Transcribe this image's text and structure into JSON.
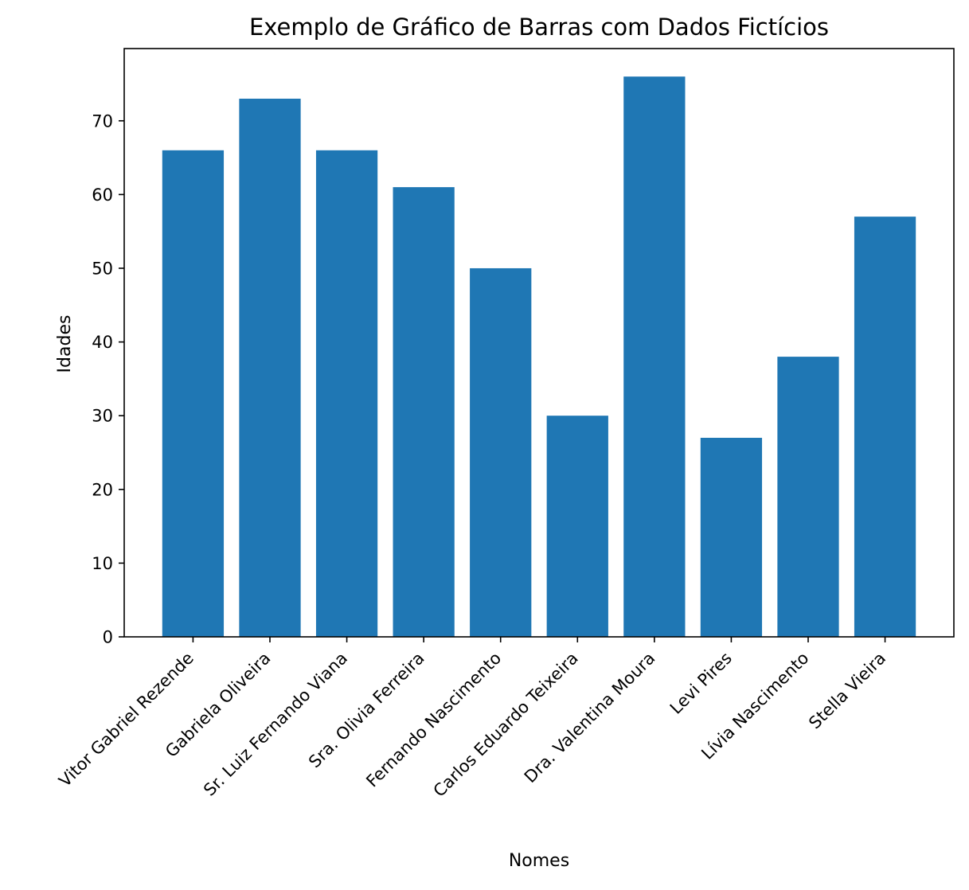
{
  "chart_data": {
    "type": "bar",
    "title": "Exemplo de Gráfico de Barras com Dados Fictícios",
    "xlabel": "Nomes",
    "ylabel": "Idades",
    "categories": [
      "Vitor Gabriel Rezende",
      "Gabriela Oliveira",
      "Sr. Luiz Fernando Viana",
      "Sra. Olivia Ferreira",
      "Fernando Nascimento",
      "Carlos Eduardo Teixeira",
      "Dra. Valentina Moura",
      "Levi Pires",
      "Lívia Nascimento",
      "Stella Vieira"
    ],
    "values": [
      66,
      73,
      66,
      61,
      50,
      30,
      76,
      27,
      38,
      57
    ],
    "ylim": [
      0,
      79.8
    ],
    "yticks": [
      0,
      10,
      20,
      30,
      40,
      50,
      60,
      70
    ],
    "grid": false,
    "bar_color": "#1f77b4"
  }
}
